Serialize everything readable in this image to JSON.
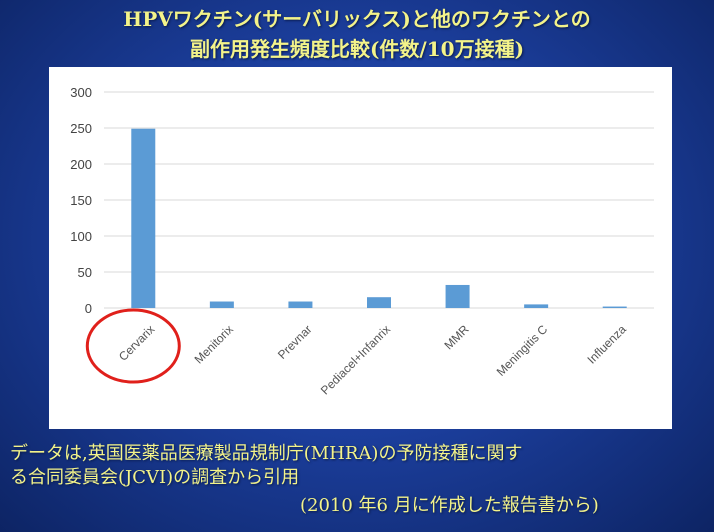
{
  "title_line1": "HPVワクチン(サーバリックス)と他のワクチンとの",
  "title_line2": "副作用発生頻度比較(件数/10万接種)",
  "chart_data": {
    "type": "bar",
    "categories": [
      "Cervarix",
      "Menitorix",
      "Prevnar",
      "Pediacel+Infanrix",
      "MMR",
      "Meningitis C",
      "Influenza"
    ],
    "values": [
      249,
      9,
      9,
      15,
      32,
      5,
      2
    ],
    "yticks": [
      "0",
      "50",
      "100",
      "150",
      "200",
      "250",
      "300"
    ],
    "ylim": [
      0,
      300
    ],
    "grid": true,
    "bar_color": "#5b9bd5",
    "highlight_category": "Cervarix",
    "highlight_color": "#e0201b"
  },
  "footer_line1": "データは,英国医薬品医療製品規制庁(MHRA)の予防接種に関す",
  "footer_line2": "る合同委員会(JCVI)の調査から引用",
  "footer_line3": "(2010 年6 月に作成した報告書から)",
  "colors": {
    "title": "#f3f38a",
    "background": "#1c3f9e"
  }
}
